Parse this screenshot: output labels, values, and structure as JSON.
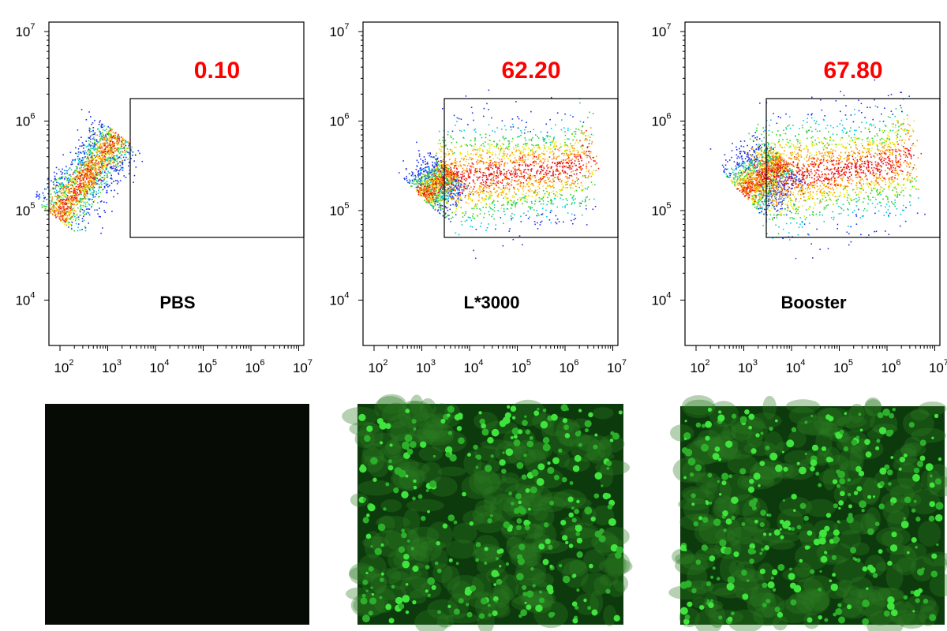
{
  "panels": [
    {
      "label": "PBS",
      "gate_percent": "0.10"
    },
    {
      "label": "L*3000",
      "gate_percent": "62.20"
    },
    {
      "label": "Booster",
      "gate_percent": "67.80"
    }
  ],
  "y_axis": {
    "ticks": [
      {
        "base": "10",
        "exponent": "7"
      },
      {
        "base": "10",
        "exponent": "6"
      },
      {
        "base": "10",
        "exponent": "5"
      },
      {
        "base": "10",
        "exponent": "4"
      }
    ]
  },
  "x_axis": {
    "ticks": [
      {
        "base": "10",
        "exponent": "2"
      },
      {
        "base": "10",
        "exponent": "3"
      },
      {
        "base": "10",
        "exponent": "4"
      },
      {
        "base": "10",
        "exponent": "5"
      },
      {
        "base": "10",
        "exponent": "6"
      },
      {
        "base": "10",
        "exponent": "7"
      }
    ]
  }
}
